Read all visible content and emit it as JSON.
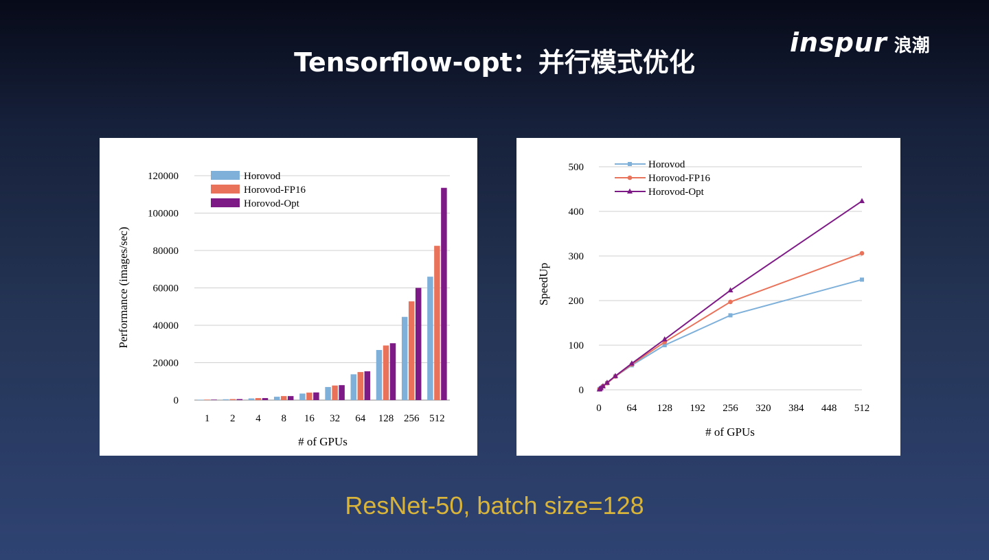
{
  "slide": {
    "title": "Tensorflow-opt：并行模式优化",
    "logo_brand": "inspur",
    "logo_cn": "浪潮",
    "caption": "ResNet-50, batch size=128"
  },
  "colors": {
    "horovod": "#7eb0da",
    "horovod_fp16": "#e8735a",
    "horovod_opt": "#7d1a85",
    "caption": "#d9b43a"
  },
  "chart_data": [
    {
      "type": "bar",
      "xlabel": "# of GPUs",
      "ylabel": "Performance (images/sec)",
      "ylim": [
        0,
        120000
      ],
      "yticks": [
        "0",
        "20000",
        "40000",
        "60000",
        "80000",
        "100000",
        "120000"
      ],
      "categories": [
        "1",
        "2",
        "4",
        "8",
        "16",
        "32",
        "64",
        "128",
        "256",
        "512"
      ],
      "legend_position": "top-left",
      "grid": true,
      "series": [
        {
          "name": "Horovod",
          "values": [
            230,
            450,
            900,
            1800,
            3500,
            7000,
            13800,
            26800,
            44500,
            66000
          ]
        },
        {
          "name": "Horovod-FP16",
          "values": [
            270,
            540,
            1080,
            2150,
            4000,
            7800,
            15000,
            29200,
            52800,
            82500
          ]
        },
        {
          "name": "Horovod-Opt",
          "values": [
            270,
            540,
            1080,
            2150,
            4100,
            8000,
            15400,
            30400,
            60000,
            113500
          ]
        }
      ]
    },
    {
      "type": "line",
      "xlabel": "# of GPUs",
      "ylabel": "SpeedUp",
      "xlim": [
        0,
        512
      ],
      "ylim": [
        0,
        500
      ],
      "xticks": [
        "0",
        "64",
        "128",
        "192",
        "256",
        "320",
        "384",
        "448",
        "512"
      ],
      "yticks": [
        "0",
        "100",
        "200",
        "300",
        "400",
        "500"
      ],
      "legend_position": "top-left",
      "grid": true,
      "series": [
        {
          "name": "Horovod",
          "marker": "square",
          "x": [
            1,
            2,
            4,
            8,
            16,
            32,
            64,
            128,
            256,
            512
          ],
          "y": [
            1,
            2,
            4,
            8,
            15,
            30,
            55,
            100,
            167,
            247
          ]
        },
        {
          "name": "Horovod-FP16",
          "marker": "circle",
          "x": [
            1,
            2,
            4,
            8,
            16,
            32,
            64,
            128,
            256,
            512
          ],
          "y": [
            1,
            2,
            4,
            8,
            15,
            30,
            57,
            107,
            197,
            306
          ]
        },
        {
          "name": "Horovod-Opt",
          "marker": "triangle",
          "x": [
            1,
            2,
            4,
            8,
            16,
            32,
            64,
            128,
            256,
            512
          ],
          "y": [
            1,
            2,
            4,
            8,
            16,
            31,
            59,
            113,
            223,
            423
          ]
        }
      ]
    }
  ]
}
